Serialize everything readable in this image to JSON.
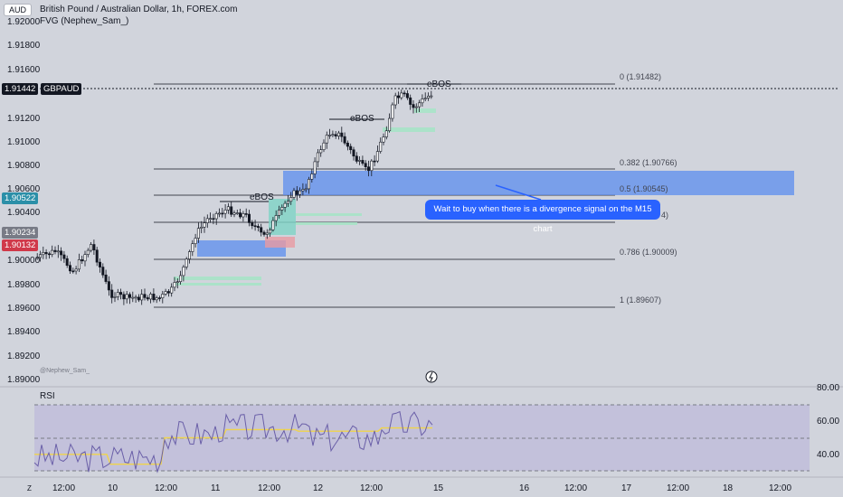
{
  "header": {
    "currency_badge": "AUD",
    "title": "British Pound / Australian Dollar, 1h, FOREX.com",
    "indicator": "FVG (Nephew_Sam_)",
    "watermark": "@Nephew_Sam_"
  },
  "price_axis": [
    "1.92000",
    "1.91800",
    "1.91600",
    "1.91200",
    "1.91000",
    "1.90800",
    "1.90600",
    "1.90400",
    "1.90000",
    "1.89800",
    "1.89600",
    "1.89400",
    "1.89200",
    "1.89000"
  ],
  "price_tags": [
    {
      "value": "1.91442",
      "ticker": "GBPAUD",
      "color": "#131722"
    },
    {
      "value": "1.90522",
      "color": "#2b8fa8"
    },
    {
      "value": "1.90234",
      "color": "#787b86"
    },
    {
      "value": "1.90132",
      "color": "#d0394a"
    }
  ],
  "fib_levels": [
    {
      "label": "0 (1.91482)"
    },
    {
      "label": "0.382 (1.90766)"
    },
    {
      "label": "0.5 (1.90545)"
    },
    {
      "label": "4)"
    },
    {
      "label": "0.786 (1.90009)"
    },
    {
      "label": "1 (1.89607)"
    }
  ],
  "annotations": {
    "ebos_1": "eBOS",
    "ebos_2": "eBOS",
    "ebos_3": "eBOS",
    "callout": "Wait to buy when there is a divergence signal on the M15 chart"
  },
  "rsi": {
    "label": "RSI",
    "axis": [
      "80.00",
      "60.00",
      "40.00"
    ]
  },
  "time_axis": [
    "Z",
    "12:00",
    "10",
    "12:00",
    "11",
    "12:00",
    "12",
    "12:00",
    "15",
    "16",
    "12:00",
    "17",
    "12:00",
    "18",
    "12:00"
  ],
  "colors": {
    "background": "#d1d4dc",
    "candle_up": "#ffffff",
    "candle_down": "#131722",
    "demand_zone": "#5b8def",
    "fvg": "#a7e4c8",
    "rsi_line": "#6a5fa8",
    "rsi_ma": "#f0d44a",
    "callout": "#2962ff"
  }
}
